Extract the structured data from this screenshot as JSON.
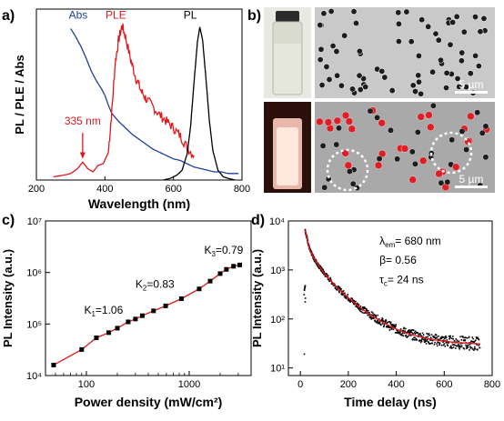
{
  "panels": {
    "a": {
      "label": "a)"
    },
    "b": {
      "label": "b)"
    },
    "c": {
      "label": "c)"
    },
    "d": {
      "label": "d)"
    }
  },
  "photos": {
    "scalebar_top": "5 µm",
    "scalebar_bottom": "5 µm",
    "vial_top_color": "#e6e7dc",
    "vial_bottom_color": "#ffd9cc"
  },
  "chart_data": [
    {
      "panel": "a",
      "type": "line",
      "xlabel": "Wavelength (nm)",
      "ylabel": "PL / PLE / Abs",
      "xlim": [
        200,
        800
      ],
      "xticks": [
        200,
        400,
        600,
        800
      ],
      "ylim": [
        0,
        1.05
      ],
      "y_ticks_shown": false,
      "series": [
        {
          "name": "Abs",
          "color": "#1f3fa0",
          "x": [
            300,
            315,
            330,
            345,
            360,
            375,
            390,
            400,
            410,
            420,
            440,
            460,
            480,
            500,
            520,
            540,
            560,
            580,
            600,
            620,
            640,
            660,
            680,
            700,
            720,
            740,
            760,
            780,
            790
          ],
          "y": [
            0.93,
            0.88,
            0.82,
            0.75,
            0.67,
            0.61,
            0.56,
            0.52,
            0.46,
            0.41,
            0.36,
            0.32,
            0.28,
            0.25,
            0.22,
            0.19,
            0.17,
            0.15,
            0.13,
            0.12,
            0.1,
            0.08,
            0.07,
            0.06,
            0.05,
            0.05,
            0.04,
            0.04,
            0.04
          ]
        },
        {
          "name": "PLE",
          "color": "#e3171b",
          "x": [
            250,
            280,
            300,
            320,
            335,
            350,
            365,
            380,
            395,
            410,
            420,
            430,
            440,
            450,
            460,
            475,
            490,
            505,
            520,
            540,
            560,
            580,
            600,
            620,
            640,
            660
          ],
          "y": [
            0.02,
            0.03,
            0.04,
            0.07,
            0.11,
            0.07,
            0.05,
            0.09,
            0.1,
            0.17,
            0.42,
            0.72,
            0.86,
            0.95,
            0.88,
            0.74,
            0.63,
            0.55,
            0.5,
            0.45,
            0.4,
            0.36,
            0.32,
            0.27,
            0.2,
            0.15
          ]
        },
        {
          "name": "PL",
          "color": "#000000",
          "x": [
            570,
            590,
            610,
            625,
            640,
            650,
            660,
            670,
            677,
            685,
            695,
            705,
            715,
            730,
            745,
            760,
            780
          ],
          "y": [
            0.0,
            0.01,
            0.03,
            0.06,
            0.16,
            0.33,
            0.6,
            0.85,
            0.94,
            0.86,
            0.62,
            0.36,
            0.18,
            0.06,
            0.02,
            0.01,
            0.0
          ]
        }
      ],
      "annotations": [
        {
          "text": "335 nm",
          "x": 335,
          "y": 0.11,
          "color": "#e3171b",
          "arrow": true
        }
      ]
    },
    {
      "panel": "c",
      "type": "scatter",
      "xlabel": "Power density (mW/cm²)",
      "ylabel": "PL Intensity (a.u.)",
      "xscale": "log",
      "yscale": "log",
      "xlim": [
        40,
        4000
      ],
      "ylim": [
        10000,
        10000000
      ],
      "xticks": [
        100,
        1000
      ],
      "yticks": [
        10000,
        100000,
        1000000,
        10000000
      ],
      "series": [
        {
          "name": "",
          "color": "#000000",
          "x": [
            48,
            90,
            125,
            165,
            200,
            255,
            300,
            350,
            450,
            590,
            840,
            1250,
            1600,
            2000,
            2300,
            2700,
            3100
          ],
          "y": [
            16000,
            32000,
            54000,
            68000,
            83000,
            110000,
            125000,
            145000,
            180000,
            225000,
            310000,
            480000,
            680000,
            950000,
            1150000,
            1320000,
            1400000
          ]
        }
      ],
      "annotations": [
        {
          "text": "K",
          "sub": "1",
          "value": "=1.06"
        },
        {
          "text": "K",
          "sub": "2",
          "value": "=0.83"
        },
        {
          "text": "K",
          "sub": "3",
          "value": "=0.79"
        }
      ]
    },
    {
      "panel": "d",
      "type": "scatter",
      "xlabel": "Time delay (ns)",
      "ylabel": "PL Intensity (a.u.)",
      "yscale": "log",
      "xlim": [
        -50,
        800
      ],
      "ylim": [
        7,
        10000
      ],
      "xticks": [
        0,
        200,
        400,
        600,
        800
      ],
      "yticks": [
        10,
        100,
        1000,
        10000
      ],
      "series": [
        {
          "name": "data",
          "color": "#000000",
          "x": [
            20,
            40,
            60,
            80,
            100,
            150,
            200,
            250,
            300,
            350,
            400,
            450,
            500,
            550,
            600,
            650,
            700,
            750
          ],
          "y": [
            6500,
            2500,
            1600,
            1150,
            850,
            450,
            270,
            170,
            115,
            82,
            62,
            50,
            43,
            38,
            35,
            33,
            32,
            31
          ]
        }
      ],
      "fit_color": "#e3171b",
      "annotations": [
        {
          "text": "λ",
          "sub": "em",
          "value": "= 680 nm"
        },
        {
          "text": "β",
          "sub": "",
          "value": "= 0.56"
        },
        {
          "text": "τ",
          "sub": "c",
          "value": "= 24 ns"
        }
      ]
    }
  ]
}
